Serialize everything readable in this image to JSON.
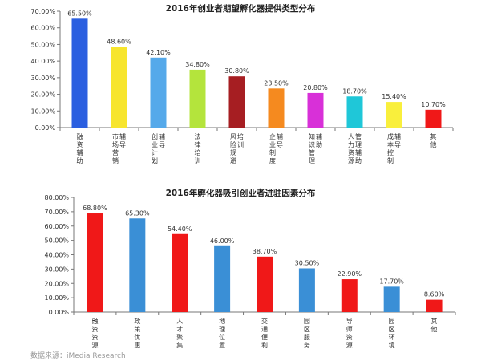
{
  "source_note": "数据来源：iMedia Research",
  "chart_data": [
    {
      "type": "bar",
      "title": "2016年创业者期望孵化器提供类型分布",
      "categories": [
        "融资辅助",
        "市场营销辅导",
        "创业计划辅导",
        "法律培训",
        "风险规避培训",
        "企业制度辅导",
        "知识管理辅助",
        "人力资源管理辅助",
        "成本控制辅导",
        "其他"
      ],
      "values": [
        65.5,
        48.6,
        42.1,
        34.8,
        30.8,
        23.5,
        20.8,
        18.7,
        15.4,
        10.7
      ],
      "value_labels": [
        "65.50%",
        "48.60%",
        "42.10%",
        "34.80%",
        "30.80%",
        "23.50%",
        "20.80%",
        "18.70%",
        "15.40%",
        "10.70%"
      ],
      "colors": [
        "#2b5fe0",
        "#f7e52e",
        "#55a9ea",
        "#b4e43c",
        "#a61e22",
        "#f58a1f",
        "#d830d8",
        "#1fc7d8",
        "#f9ef3c",
        "#f01818"
      ],
      "ylim": [
        0,
        70
      ],
      "yticks": [
        0,
        10,
        20,
        30,
        40,
        50,
        60,
        70
      ],
      "ytick_labels": [
        "0.00%",
        "10.00%",
        "20.00%",
        "30.00%",
        "40.00%",
        "50.00%",
        "60.00%",
        "70.00%"
      ],
      "grid": false,
      "xlabel": "",
      "ylabel": ""
    },
    {
      "type": "bar",
      "title": "2016年孵化器吸引创业者进驻因素分布",
      "categories": [
        "融资资源",
        "政策优惠",
        "人才聚集",
        "地理位置",
        "交通便利",
        "园区服务",
        "导师资源",
        "园区环境",
        "其他"
      ],
      "values": [
        68.8,
        65.3,
        54.4,
        46.0,
        38.7,
        30.5,
        22.9,
        17.7,
        8.6
      ],
      "value_labels": [
        "68.80%",
        "65.30%",
        "54.40%",
        "46.00%",
        "38.70%",
        "30.50%",
        "22.90%",
        "17.70%",
        "8.60%"
      ],
      "colors": [
        "#f01818",
        "#3a8fd6",
        "#f01818",
        "#3a8fd6",
        "#f01818",
        "#3a8fd6",
        "#f01818",
        "#3a8fd6",
        "#f01818"
      ],
      "ylim": [
        0,
        80
      ],
      "yticks": [
        0,
        10,
        20,
        30,
        40,
        50,
        60,
        70,
        80
      ],
      "ytick_labels": [
        "0.00%",
        "10.00%",
        "20.00%",
        "30.00%",
        "40.00%",
        "50.00%",
        "60.00%",
        "70.00%",
        "80.00%"
      ],
      "grid": false,
      "xlabel": "",
      "ylabel": ""
    }
  ]
}
